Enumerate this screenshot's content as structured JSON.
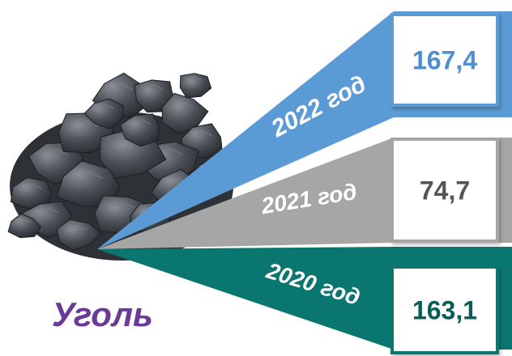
{
  "title": "Уголь",
  "colors": {
    "title": "#6a3a98",
    "coal_dark": "#2e3236",
    "coal_mid": "#4a4f55",
    "coal_light": "#7a8087",
    "box_fill": "#ffffff"
  },
  "chart_data": {
    "type": "bar",
    "categories": [
      "2022 год",
      "2021 год",
      "2020 год"
    ],
    "values": [
      167.4,
      74.7,
      163.1
    ],
    "value_labels": [
      "167,4",
      "74,7",
      "163,1"
    ],
    "colors": [
      "#5b9bd5",
      "#a6a6a6",
      "#0a7670"
    ],
    "value_text_colors": [
      "#4f8fd0",
      "#555555",
      "#0b5c57"
    ],
    "icon": "coal-pile-image"
  }
}
